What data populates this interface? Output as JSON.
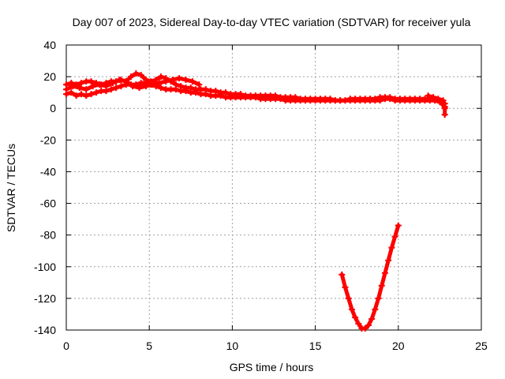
{
  "chart_data": {
    "type": "scatter",
    "title": "Day 007 of 2023, Sidereal Day-to-day VTEC variation (SDTVAR) for receiver yula",
    "xlabel": "GPS time / hours",
    "ylabel": "SDTVAR / TECUs",
    "xlim": [
      0,
      25
    ],
    "ylim": [
      -140,
      40
    ],
    "xticks": [
      0,
      5,
      10,
      15,
      20,
      25
    ],
    "yticks": [
      -140,
      -120,
      -100,
      -80,
      -60,
      -40,
      -20,
      0,
      20,
      40
    ],
    "xtick_labels": [
      "0",
      "5",
      "10",
      "15",
      "20",
      "25"
    ],
    "ytick_labels": [
      "-140",
      "-120",
      "-100",
      "-80",
      "-60",
      "-40",
      "-20",
      "0",
      "20",
      "40"
    ],
    "grid": true,
    "legend": "none",
    "marker": "plus",
    "color": "#ff0000",
    "series": [
      {
        "x": [
          0.0,
          0.3,
          0.6,
          0.9,
          1.2,
          1.5,
          1.8,
          2.1,
          2.4,
          2.7,
          3.0,
          3.3,
          3.6,
          3.9,
          4.2,
          4.5,
          4.8,
          5.1,
          5.4,
          5.7,
          6.0,
          6.3,
          6.6,
          6.9,
          7.2,
          7.5,
          7.8,
          8.1,
          8.4,
          8.7,
          9.0,
          9.3,
          9.6,
          9.9,
          10.2,
          10.5,
          10.8,
          11.1,
          11.4,
          11.7,
          12.0,
          12.3,
          12.6,
          12.9,
          13.2,
          13.5,
          13.8,
          14.1,
          14.4,
          14.7,
          15.0,
          15.3,
          15.6,
          15.9,
          16.2,
          16.5,
          16.8,
          17.1,
          17.4,
          17.7,
          18.0,
          18.3,
          18.6,
          18.9,
          19.2,
          19.5,
          19.8,
          20.1,
          20.4,
          20.7,
          21.0,
          21.3,
          21.6,
          21.9,
          22.2,
          22.5,
          22.8
        ],
        "y": [
          15,
          16,
          15,
          16,
          17,
          17,
          16,
          15,
          16,
          17,
          17,
          18,
          17,
          20,
          22,
          21,
          18,
          17,
          18,
          20,
          19,
          17,
          15,
          14,
          13,
          13,
          12,
          12,
          12,
          11,
          11,
          10,
          10,
          9,
          9,
          9,
          8,
          8,
          8,
          8,
          8,
          8,
          8,
          7,
          7,
          7,
          7,
          6,
          6,
          6,
          6,
          6,
          6,
          6,
          5,
          5,
          5,
          6,
          6,
          6,
          6,
          6,
          6,
          7,
          7,
          7,
          6,
          6,
          6,
          6,
          6,
          6,
          6,
          6,
          6,
          5,
          3
        ]
      },
      {
        "x": [
          0.0,
          0.3,
          0.6,
          0.9,
          1.2,
          1.5,
          1.8,
          2.1,
          2.4,
          2.7,
          3.0,
          3.3,
          3.6,
          3.9,
          4.2,
          4.5,
          4.8,
          5.1,
          5.4,
          5.7,
          6.0,
          6.3,
          6.6,
          6.9,
          7.2,
          7.5,
          7.8,
          8.1,
          8.4,
          8.7,
          9.0,
          9.3,
          9.6,
          9.9,
          10.2,
          10.5,
          10.8,
          11.1,
          11.4,
          11.7,
          12.0,
          12.3,
          12.6,
          12.9,
          13.2,
          13.5,
          13.8,
          14.1,
          14.4,
          14.7,
          15.0,
          15.3,
          15.6,
          15.9,
          16.2,
          16.5,
          16.8,
          17.1,
          17.4,
          17.7,
          18.0,
          18.3,
          18.6,
          18.9,
          19.2,
          19.5,
          19.8,
          20.1,
          20.4,
          20.7,
          21.0,
          21.3,
          21.6,
          21.9,
          22.2,
          22.5,
          22.8
        ],
        "y": [
          9,
          10,
          8,
          9,
          8,
          9,
          10,
          11,
          11,
          12,
          13,
          14,
          15,
          15,
          15,
          16,
          16,
          15,
          14,
          13,
          12,
          12,
          12,
          11,
          11,
          10,
          10,
          9,
          9,
          8,
          8,
          8,
          7,
          7,
          7,
          7,
          7,
          7,
          7,
          6,
          6,
          6,
          6,
          6,
          5,
          5,
          5,
          5,
          5,
          5,
          5,
          5,
          5,
          5,
          5,
          5,
          5,
          5,
          5,
          5,
          5,
          5,
          5,
          5,
          6,
          6,
          5,
          5,
          5,
          5,
          5,
          5,
          5,
          5,
          5,
          4,
          1
        ]
      },
      {
        "x": [
          0.0,
          0.4,
          0.8,
          1.2,
          1.6,
          2.0,
          2.4,
          2.8,
          3.2,
          3.6,
          4.0,
          4.4,
          4.8,
          5.2,
          5.6,
          6.0,
          6.4,
          6.8,
          7.2,
          7.6,
          8.0
        ],
        "y": [
          12,
          14,
          13,
          12,
          14,
          15,
          14,
          16,
          18,
          17,
          14,
          13,
          14,
          15,
          16,
          17,
          18,
          19,
          18,
          17,
          15
        ]
      },
      {
        "x": [
          21.8,
          22.1,
          22.4,
          22.7,
          22.8,
          22.8
        ],
        "y": [
          8,
          7,
          6,
          5,
          0,
          -4
        ]
      },
      {
        "x": [
          16.6,
          16.8,
          17.0,
          17.2,
          17.4,
          17.6,
          17.8,
          18.0,
          18.2,
          18.4,
          18.6,
          18.8,
          19.0,
          19.2,
          19.4,
          19.6,
          19.8,
          20.0
        ],
        "y": [
          -105,
          -113,
          -120,
          -127,
          -132,
          -136,
          -139,
          -139,
          -137,
          -133,
          -127,
          -120,
          -112,
          -104,
          -96,
          -88,
          -81,
          -74
        ]
      }
    ]
  }
}
